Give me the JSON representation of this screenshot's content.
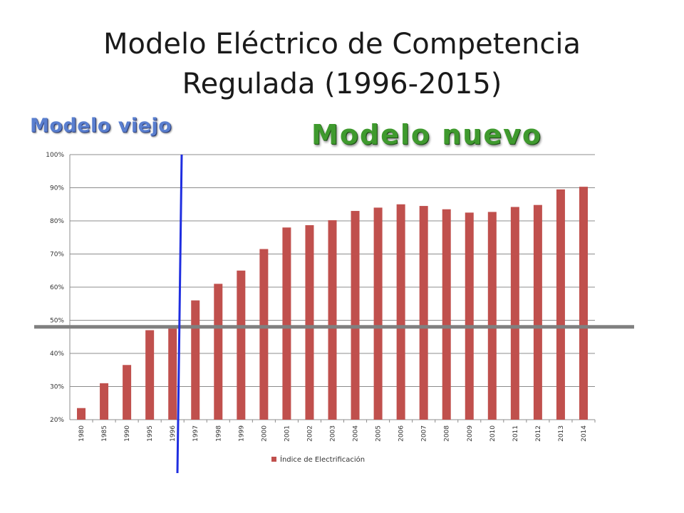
{
  "title_line1": "Modelo Eléctrico de Competencia",
  "title_line2": "Regulada (1996-2015)",
  "annotation_old": "Modelo viejo",
  "annotation_new": "Modelo nuevo",
  "colors": {
    "bar": "#c0504d",
    "divider_vertical": "#1f2ee0",
    "divider_horizontal": "#808080",
    "old_label": "#5a7fcf",
    "new_label": "#3f9a2e"
  },
  "chart_data": {
    "type": "bar",
    "categories": [
      "1980",
      "1985",
      "1990",
      "1995",
      "1996",
      "1997",
      "1998",
      "1999",
      "2000",
      "2001",
      "2002",
      "2003",
      "2004",
      "2005",
      "2006",
      "2007",
      "2008",
      "2009",
      "2010",
      "2011",
      "2012",
      "2013",
      "2014"
    ],
    "series": [
      {
        "name": "Índice de Electrificación",
        "values": [
          23.5,
          31,
          36.5,
          47,
          47.5,
          56,
          61,
          65,
          71.5,
          78,
          78.7,
          80.2,
          83,
          84,
          85,
          84.5,
          83.5,
          82.5,
          82.7,
          84.2,
          84.8,
          89.5,
          90.3
        ]
      }
    ],
    "ylim": [
      20,
      100
    ],
    "yticks": [
      "20%",
      "30%",
      "40%",
      "50%",
      "60%",
      "70%",
      "80%",
      "90%",
      "100%"
    ],
    "grid": true,
    "legend_position": "bottom",
    "reference_line_y": 48
  }
}
